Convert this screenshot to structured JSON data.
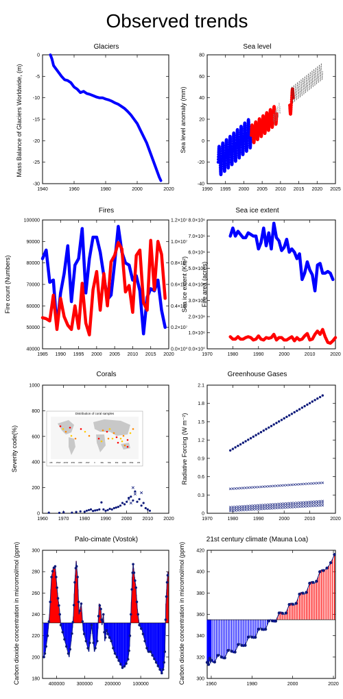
{
  "page_title": "Observed trends",
  "colors": {
    "blue": "#0000ff",
    "red": "#ff0000",
    "navy": "#0d1a7a"
  },
  "chart_data": [
    {
      "id": "glaciers",
      "type": "line",
      "title": "Glaciers",
      "ylabel": "Mass Balance of Glaciers Worldwide,  (m)",
      "xlabel": "",
      "xlim": [
        1940,
        2020
      ],
      "ylim": [
        -30,
        0
      ],
      "xticks": [
        1940,
        1960,
        1980,
        2000,
        2020
      ],
      "yticks": [
        0,
        -5,
        -10,
        -15,
        -20,
        -25,
        -30
      ],
      "series": [
        {
          "name": "Glacier mass balance",
          "color": "#0000ff",
          "x": [
            1945,
            1946,
            1947,
            1948,
            1950,
            1952,
            1954,
            1956,
            1958,
            1960,
            1962,
            1964,
            1966,
            1968,
            1970,
            1972,
            1974,
            1976,
            1978,
            1980,
            1982,
            1984,
            1986,
            1988,
            1990,
            1992,
            1994,
            1996,
            1998,
            2000,
            2002,
            2004,
            2006,
            2008,
            2010,
            2012,
            2014,
            2015
          ],
          "y": [
            0,
            -1,
            -2.5,
            -3,
            -4,
            -5,
            -5.8,
            -6,
            -6.5,
            -7.5,
            -8,
            -8.8,
            -8.5,
            -9,
            -9.2,
            -9.5,
            -9.8,
            -10,
            -10,
            -10.3,
            -10.5,
            -10.8,
            -11.2,
            -11.5,
            -12,
            -12.5,
            -13.2,
            -14,
            -15,
            -16,
            -17.5,
            -19,
            -20.5,
            -22.5,
            -24.5,
            -26.5,
            -28.5,
            -29.3
          ]
        }
      ]
    },
    {
      "id": "sealevel",
      "type": "scatter",
      "title": "Sea  level",
      "ylabel": "Sea level anomaly (mm)",
      "xlabel": "",
      "xlim": [
        1990,
        2025
      ],
      "ylim": [
        -40,
        80
      ],
      "xticks": [
        1990,
        1995,
        2000,
        2005,
        2010,
        2015,
        2020,
        2025
      ],
      "yticks": [
        -40,
        -20,
        0,
        20,
        40,
        60,
        80
      ],
      "series": [
        {
          "name": "satellite record 1",
          "color": "#0000ff",
          "x_start": 1993,
          "x_end": 2002,
          "y_start": -20,
          "y_end": 8,
          "seasonal_amp": 14
        },
        {
          "name": "satellite record 2",
          "color": "#ff0000",
          "x_start": 2002,
          "x_end": 2009,
          "y_start": 5,
          "y_end": 25,
          "seasonal_amp": 9
        },
        {
          "name": "satellite record 3",
          "color": "#ff0000",
          "x_start": 2012.5,
          "x_end": 2013.5,
          "y_start": 33,
          "y_end": 40,
          "seasonal_amp": 10
        },
        {
          "name": "gray record A",
          "color": "#888888",
          "x_start": 2008,
          "x_end": 2010,
          "y_start": 18,
          "y_end": 32,
          "seasonal_amp": 6
        },
        {
          "name": "gray record B",
          "color": "#333333",
          "x_start": 2013,
          "x_end": 2021.5,
          "y_start": 42,
          "y_end": 65,
          "seasonal_amp": 8
        }
      ]
    },
    {
      "id": "fires",
      "type": "line",
      "title": "Fires",
      "ylabel": "Fire count (Numbers)",
      "ylabel_right": "Fire area (acres)",
      "xlabel": "",
      "xlim": [
        1985,
        2020
      ],
      "ylim": [
        40000,
        100000
      ],
      "ylim_right": [
        0,
        12000000
      ],
      "xticks": [
        1985,
        1990,
        1995,
        2000,
        2005,
        2010,
        2015,
        2020
      ],
      "yticks": [
        40000,
        50000,
        60000,
        70000,
        80000,
        90000,
        100000
      ],
      "yticks_right_labels": [
        "0.0×10⁰",
        "0.2×10⁷",
        "0.4×10⁷",
        "0.6×10⁷",
        "0.8×10⁷",
        "1.0×10⁷",
        "1.2×10⁷"
      ],
      "series": [
        {
          "name": "Fire count",
          "color": "#0000ff",
          "x": [
            1985,
            1986,
            1987,
            1988,
            1989,
            1990,
            1991,
            1992,
            1993,
            1994,
            1995,
            1996,
            1997,
            1998,
            1999,
            2000,
            2001,
            2002,
            2003,
            2004,
            2005,
            2006,
            2007,
            2008,
            2009,
            2010,
            2011,
            2012,
            2013,
            2014,
            2015,
            2016,
            2017,
            2018,
            2019
          ],
          "y": [
            82000,
            86000,
            71000,
            72000,
            50000,
            66000,
            75000,
            88000,
            62000,
            79000,
            82000,
            96000,
            66000,
            82000,
            92000,
            92000,
            85000,
            74000,
            63000,
            65000,
            80000,
            97000,
            85000,
            80000,
            79000,
            72000,
            74000,
            67000,
            47000,
            64000,
            68000,
            67000,
            72000,
            58000,
            50000
          ]
        },
        {
          "name": "Fire area",
          "color": "#ff0000",
          "x": [
            1985,
            1986,
            1987,
            1988,
            1989,
            1990,
            1991,
            1992,
            1993,
            1994,
            1995,
            1996,
            1997,
            1998,
            1999,
            2000,
            2001,
            2002,
            2003,
            2004,
            2005,
            2006,
            2007,
            2008,
            2009,
            2010,
            2011,
            2012,
            2013,
            2014,
            2015,
            2016,
            2017,
            2018,
            2019
          ],
          "y": [
            2900000,
            2800000,
            2600000,
            5000000,
            1800000,
            4700000,
            3000000,
            2200000,
            1800000,
            4000000,
            1900000,
            6100000,
            2400000,
            1300000,
            5500000,
            7200000,
            3600000,
            7000000,
            4000000,
            8100000,
            8700000,
            9900000,
            9300000,
            5300000,
            5900000,
            3400000,
            8700000,
            9200000,
            4300000,
            3600000,
            10100000,
            5500000,
            10000000,
            8800000,
            4700000
          ]
        }
      ]
    },
    {
      "id": "seaice",
      "type": "line",
      "title": "Sea ice extent",
      "ylabel": "Sea ice extent (Km²)",
      "xlabel": "",
      "xlim": [
        1970,
        2020
      ],
      "ylim": [
        0,
        8000000
      ],
      "xticks": [
        1970,
        1980,
        1990,
        2000,
        2010,
        2020
      ],
      "ytick_labels": [
        "0.0×10⁰",
        "1.0×10⁶",
        "2.0×10⁶",
        "3.0×10⁶",
        "4.0×10⁶",
        "5.0×10⁶",
        "6.0×10⁶",
        "7.0×10⁶",
        "8.0×10⁶"
      ],
      "series": [
        {
          "name": "September",
          "color": "#0000ff",
          "x": [
            1979,
            1980,
            1981,
            1982,
            1983,
            1984,
            1985,
            1986,
            1987,
            1988,
            1989,
            1990,
            1991,
            1992,
            1993,
            1994,
            1995,
            1996,
            1997,
            1998,
            1999,
            2000,
            2001,
            2002,
            2003,
            2004,
            2005,
            2006,
            2007,
            2008,
            2009,
            2010,
            2011,
            2012,
            2013,
            2014,
            2015,
            2016,
            2017,
            2018,
            2019
          ],
          "y": [
            7000000,
            7500000,
            7000000,
            7300000,
            7100000,
            6900000,
            6900000,
            7200000,
            7100000,
            7000000,
            7000000,
            6200000,
            6600000,
            7500000,
            6400000,
            7200000,
            6200000,
            7800000,
            6900000,
            6700000,
            6100000,
            6300000,
            6800000,
            6000000,
            6200000,
            6000000,
            5600000,
            5900000,
            4300000,
            4700000,
            5400000,
            4900000,
            4600000,
            3600000,
            5200000,
            5300000,
            4700000,
            4700000,
            4800000,
            4700000,
            4300000
          ]
        },
        {
          "name": "Anomaly",
          "color": "#ff0000",
          "x": [
            1979,
            1980,
            1981,
            1982,
            1983,
            1984,
            1985,
            1986,
            1987,
            1988,
            1989,
            1990,
            1991,
            1992,
            1993,
            1994,
            1995,
            1996,
            1997,
            1998,
            1999,
            2000,
            2001,
            2002,
            2003,
            2004,
            2005,
            2006,
            2007,
            2008,
            2009,
            2010,
            2011,
            2012,
            2013,
            2014,
            2015,
            2016,
            2017,
            2018,
            2019,
            2020
          ],
          "y": [
            750000,
            600000,
            600000,
            750000,
            600000,
            600000,
            700000,
            750000,
            700000,
            550000,
            600000,
            800000,
            600000,
            550000,
            700000,
            650000,
            700000,
            900000,
            550000,
            700000,
            700000,
            550000,
            550000,
            650000,
            750000,
            500000,
            700000,
            550000,
            600000,
            800000,
            950000,
            550000,
            600000,
            900000,
            1100000,
            900000,
            1200000,
            750000,
            400000,
            350000,
            500000,
            700000
          ]
        }
      ]
    },
    {
      "id": "corals",
      "type": "scatter",
      "title": "Corals",
      "ylabel": "Severity code(%)",
      "xlabel": "",
      "xlim": [
        1960,
        2020
      ],
      "ylim": [
        0,
        1000
      ],
      "xticks": [
        1960,
        1970,
        1980,
        1990,
        2000,
        2010,
        2020
      ],
      "yticks": [
        0,
        200,
        400,
        600,
        800,
        1000
      ],
      "inset_title": "Distribution of coral samples",
      "inset_ticks": [
        "-180",
        "-150W",
        "-120W",
        "-90W",
        "-60W",
        "-30W",
        "0",
        "30E",
        "60E",
        "90E",
        "120E",
        "150E",
        "180"
      ],
      "series": [
        {
          "name": "severity",
          "color": "#0d1a7a",
          "x": [
            1963,
            1968,
            1970,
            1974,
            1976,
            1978,
            1980,
            1981,
            1982,
            1983,
            1984,
            1985,
            1986,
            1987,
            1988,
            1989,
            1990,
            1991,
            1992,
            1993,
            1994,
            1995,
            1996,
            1997,
            1998,
            1999,
            2000,
            2001,
            2002,
            2003,
            2004,
            2005,
            2006,
            2007,
            2008,
            2009,
            2010,
            2011
          ],
          "y": [
            5,
            3,
            8,
            5,
            10,
            15,
            12,
            20,
            25,
            30,
            18,
            22,
            25,
            30,
            85,
            30,
            20,
            25,
            35,
            30,
            40,
            45,
            50,
            60,
            80,
            70,
            90,
            120,
            130,
            100,
            170,
            90,
            110,
            60,
            80,
            40,
            30,
            20
          ]
        },
        {
          "name": "outliers",
          "color": "#0d1a7a",
          "x": [
            2001,
            2002,
            2003,
            2004,
            2007
          ],
          "y": [
            110,
            80,
            200,
            150,
            160
          ]
        }
      ]
    },
    {
      "id": "ghg",
      "type": "scatter",
      "title": "Greenhouse Gases",
      "ylabel": "Radiative Forcing (W m⁻²)",
      "xlabel": "",
      "xlim": [
        1970,
        2020
      ],
      "ylim": [
        0,
        2.1
      ],
      "xticks": [
        1970,
        1980,
        1990,
        2000,
        2010,
        2020
      ],
      "yticks": [
        0,
        0.3,
        0.6,
        0.9,
        1.2,
        1.5,
        1.8,
        2.1
      ],
      "series": [
        {
          "name": "CO2",
          "color": "#0d1a7a",
          "x_start": 1979,
          "x_end": 2015,
          "y_start": 1.03,
          "y_end": 1.93
        },
        {
          "name": "CH4",
          "color": "#0d1a7a",
          "x_start": 1979,
          "x_end": 2015,
          "y_start": 0.4,
          "y_end": 0.5
        },
        {
          "name": "N2O",
          "color": "#0d1a7a",
          "x_start": 1979,
          "x_end": 2015,
          "y_start": 0.1,
          "y_end": 0.2
        },
        {
          "name": "CFC-12",
          "color": "#0d1a7a",
          "x_start": 1979,
          "x_end": 2015,
          "y_start": 0.07,
          "y_end": 0.17
        },
        {
          "name": "CFC-11",
          "color": "#0d1a7a",
          "x_start": 1979,
          "x_end": 2015,
          "y_start": 0.04,
          "y_end": 0.13
        }
      ]
    },
    {
      "id": "vostok",
      "type": "area",
      "title": "Palo-cimate (Vostok)",
      "ylabel": "Carbon dioxide concentration in micromol/mol (ppm)",
      "xlabel": "",
      "xlim": [
        450000,
        0
      ],
      "ylim": [
        180,
        300
      ],
      "baseline": 232,
      "xticks": [
        400000,
        300000,
        200000,
        100000
      ],
      "yticks": [
        180,
        200,
        220,
        240,
        260,
        280,
        300
      ],
      "series": [
        {
          "name": "CO2 (Vostok)",
          "color": "#0d1a7a",
          "x": [
            445000,
            440000,
            432000,
            425000,
            418000,
            412000,
            405000,
            400000,
            395000,
            390000,
            385000,
            375000,
            365000,
            355000,
            345000,
            340000,
            335000,
            330000,
            325000,
            320000,
            312000,
            305000,
            295000,
            285000,
            275000,
            265000,
            255000,
            248000,
            242000,
            238000,
            233000,
            228000,
            222000,
            215000,
            205000,
            195000,
            185000,
            175000,
            165000,
            155000,
            145000,
            140000,
            135000,
            130000,
            127000,
            122000,
            117000,
            112000,
            105000,
            95000,
            85000,
            75000,
            65000,
            55000,
            45000,
            35000,
            25000,
            18000,
            14000,
            10000,
            6000,
            3000
          ],
          "y": [
            200,
            205,
            220,
            240,
            275,
            283,
            285,
            270,
            255,
            245,
            230,
            220,
            210,
            200,
            222,
            238,
            270,
            290,
            275,
            240,
            250,
            225,
            215,
            205,
            230,
            205,
            215,
            250,
            245,
            230,
            240,
            215,
            225,
            220,
            215,
            205,
            200,
            195,
            190,
            192,
            198,
            210,
            240,
            275,
            287,
            275,
            265,
            245,
            230,
            225,
            215,
            205,
            205,
            200,
            195,
            190,
            185,
            190,
            205,
            250,
            270,
            280
          ]
        }
      ]
    },
    {
      "id": "maunaloa",
      "type": "area",
      "title": "21st century climate (Mauna Loa)",
      "ylabel": "Carbon dioxide concentration in micromol/mol (ppm)",
      "xlabel": "",
      "xlim": [
        1958,
        2021
      ],
      "ylim": [
        300,
        420
      ],
      "baseline": 355,
      "xticks": [
        1960,
        1980,
        2000,
        2020
      ],
      "yticks": [
        300,
        320,
        340,
        360,
        380,
        400,
        420
      ],
      "series": [
        {
          "name": "CO2 (Mauna Loa)",
          "color": "#0d1a7a",
          "x": [
            1958,
            1960,
            1965,
            1970,
            1975,
            1980,
            1985,
            1990,
            1995,
            2000,
            2005,
            2010,
            2015,
            2020.5
          ],
          "y": [
            315,
            317,
            320,
            325.5,
            331,
            338.7,
            346,
            354,
            361,
            369.5,
            379.8,
            389.9,
            401,
            416
          ]
        }
      ]
    }
  ]
}
